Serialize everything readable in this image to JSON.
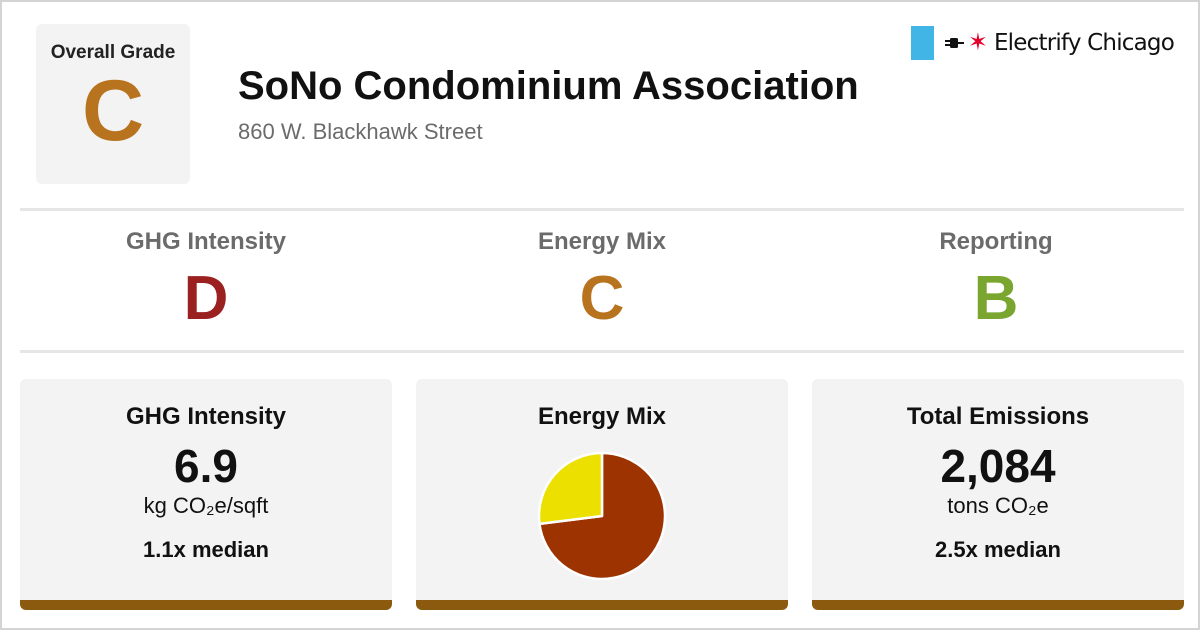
{
  "overall": {
    "label": "Overall Grade",
    "grade": "C",
    "grade_color": "#b8731e"
  },
  "building": {
    "name": "SoNo Condominium Association",
    "address": "860 W. Blackhawk Street"
  },
  "brand": {
    "text": "Electrify Chicago",
    "flag_color": "#41b6e6",
    "star_color": "#e4002b",
    "icons": [
      "chicago-flag-stripe-icon",
      "plug-icon",
      "red-star-icon"
    ]
  },
  "grades": [
    {
      "label": "GHG Intensity",
      "grade": "D",
      "color": "#9b2020"
    },
    {
      "label": "Energy Mix",
      "grade": "C",
      "color": "#b8731e"
    },
    {
      "label": "Reporting",
      "grade": "B",
      "color": "#7aa52e"
    }
  ],
  "cards": {
    "ghg": {
      "title": "GHG Intensity",
      "value": "6.9",
      "unit": "kg CO₂e/sqft",
      "median": "1.1x median"
    },
    "mix": {
      "title": "Energy Mix"
    },
    "emissions": {
      "title": "Total Emissions",
      "value": "2,084",
      "unit": "tons CO₂e",
      "median": "2.5x median"
    }
  },
  "card_bar_color": "#8b5a0f",
  "chart_data": {
    "type": "pie",
    "slices": [
      {
        "value": 73,
        "color": "#9c3300"
      },
      {
        "value": 27,
        "color": "#ece000"
      }
    ]
  }
}
